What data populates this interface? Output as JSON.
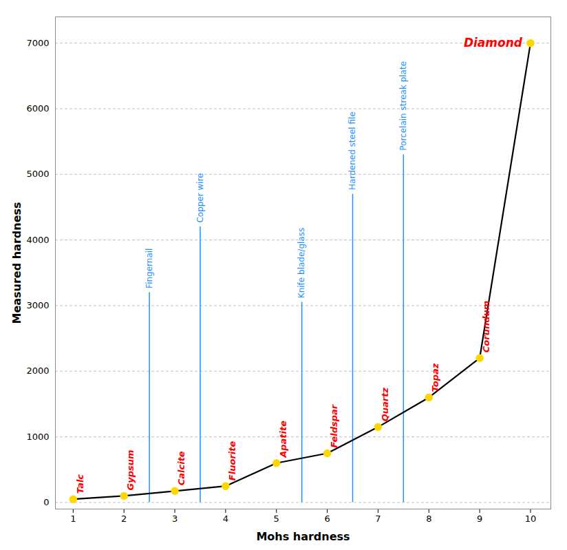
{
  "chart_data": {
    "type": "line",
    "x_label": "Mohs hardness",
    "y_label": "Measured hardness",
    "x": [
      1,
      2,
      3,
      4,
      5,
      6,
      7,
      8,
      9,
      10
    ],
    "values": [
      50,
      100,
      175,
      250,
      600,
      750,
      1150,
      1600,
      2200,
      7000
    ],
    "color": "black",
    "marker": "circle",
    "colors": [
      "#FFD700",
      "#FFD700",
      "#FFD700",
      "#FFD700",
      "#FFD700",
      "#FFD700",
      "#FFD700",
      "#FFD700",
      "#FFD700",
      "#FFD700"
    ],
    "xlim": [
      0.65,
      10.4
    ],
    "ylim": [
      -100,
      7400
    ],
    "xticks": [
      1,
      2,
      3,
      4,
      5,
      6,
      7,
      8,
      9,
      10
    ],
    "yticks": [
      0,
      1000,
      2000,
      3000,
      4000,
      5000,
      6000,
      7000
    ],
    "grid": true,
    "annotations": [
      {
        "text": "Talc",
        "x": 1,
        "y": 50,
        "color": "red"
      },
      {
        "text": "Gypsum",
        "x": 2,
        "y": 100,
        "color": "red"
      },
      {
        "text": "Calcite",
        "x": 3,
        "y": 175,
        "color": "red"
      },
      {
        "text": "Fluorite",
        "x": 4,
        "y": 250,
        "color": "red"
      },
      {
        "text": "Apatite",
        "x": 5,
        "y": 600,
        "color": "red"
      },
      {
        "text": "Feldspar",
        "x": 6,
        "y": 750,
        "color": "red"
      },
      {
        "text": "Quartz",
        "x": 7,
        "y": 1150,
        "color": "red"
      },
      {
        "text": "Topaz",
        "x": 8,
        "y": 1600,
        "color": "red"
      },
      {
        "text": "Corundum",
        "x": 9,
        "y": 2200,
        "color": "red"
      },
      {
        "text": "Diamond",
        "x": 10,
        "y": 7000,
        "color": "red"
      }
    ],
    "tools": [
      {
        "text": "Fingernail",
        "x": 2.5,
        "y_from": 0,
        "y_to": 3200,
        "color": "#1E90FF"
      },
      {
        "text": "Copper wire",
        "x": 3.5,
        "y_from": 0,
        "y_to": 4200,
        "color": "#1E90FF"
      },
      {
        "text": "Knife blade/glass",
        "x": 5.5,
        "y_from": 0,
        "y_to": 3050,
        "color": "#1E90FF"
      },
      {
        "text": "Hardened steel file",
        "x": 6.5,
        "y_from": 0,
        "y_to": 4700,
        "color": "#1E90FF"
      },
      {
        "text": "Porcelain streak plate",
        "x": 7.5,
        "y_from": 0,
        "y_to": 5300,
        "color": "#1E90FF"
      }
    ]
  }
}
